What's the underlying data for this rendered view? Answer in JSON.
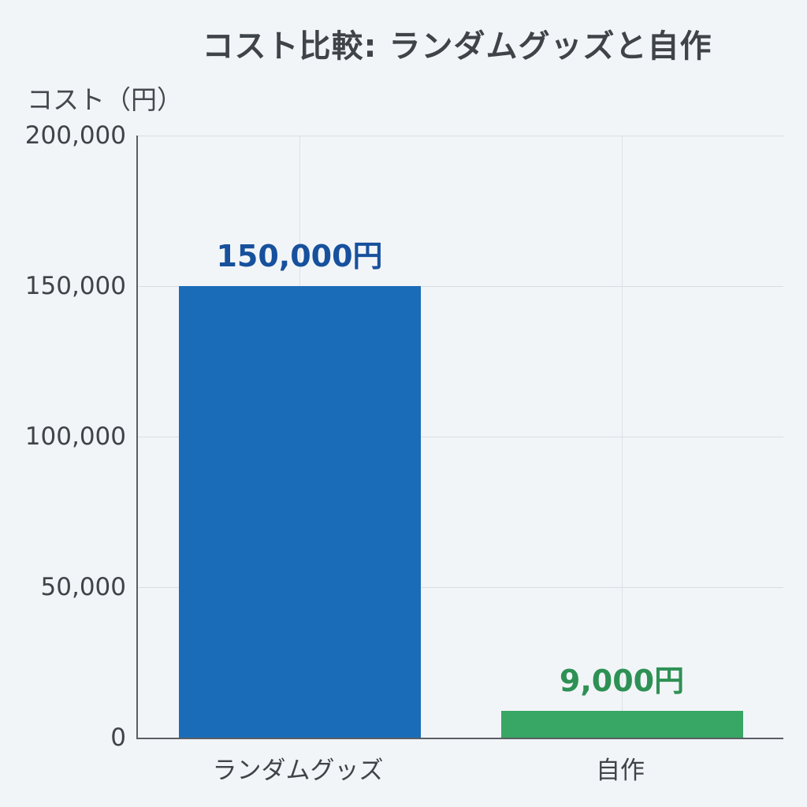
{
  "title": "コスト比較: ランダムグッズと自作",
  "chart_data": {
    "type": "bar",
    "title": "コスト比較: ランダムグッズと自作",
    "xlabel": "",
    "ylabel": "コスト（円）",
    "categories": [
      "ランダムグッズ",
      "自作"
    ],
    "values": [
      150000,
      9000
    ],
    "value_labels": [
      "150,000円",
      "9,000円"
    ],
    "bar_colors": [
      "#1b6cb8",
      "#38a765"
    ],
    "value_label_colors": [
      "#17519d",
      "#2e9154"
    ],
    "ylim": [
      0,
      200000
    ],
    "yticks": [
      0,
      50000,
      100000,
      150000,
      200000
    ],
    "ytick_labels": [
      "0",
      "50,000",
      "100,000",
      "150,000",
      "200,000"
    ],
    "grid": true,
    "legend": false
  },
  "colors": {
    "background": "#f2f5f8",
    "gridline": "#d9dde1",
    "axis": "#5a5f63",
    "text": "#3f4449"
  }
}
